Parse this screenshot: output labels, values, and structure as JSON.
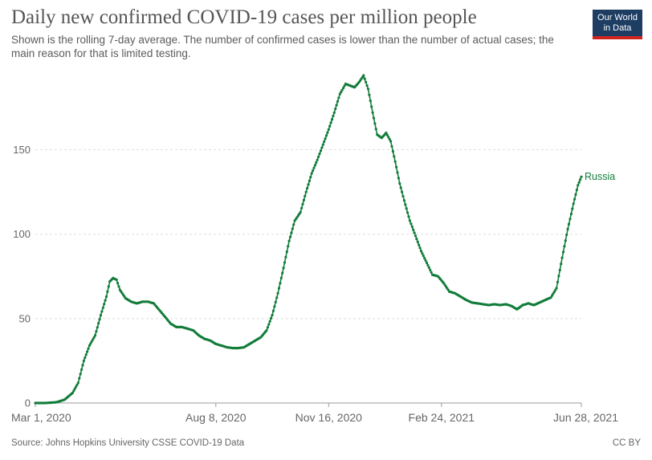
{
  "header": {
    "title": "Daily new confirmed COVID-19 cases per million people",
    "subtitle": "Shown is the rolling 7-day average. The number of confirmed cases is lower than the number of actual cases; the main reason for that is limited testing."
  },
  "logo": {
    "line1": "Our World",
    "line2": "in Data",
    "bg_color": "#1d3d63",
    "accent_color": "#ce261e"
  },
  "footer": {
    "source": "Source: Johns Hopkins University CSSE COVID-19 Data",
    "license": "CC BY"
  },
  "chart_data": {
    "type": "line",
    "title": "Daily new confirmed COVID-19 cases per million people",
    "xlabel": "",
    "ylabel": "",
    "x_ticks": [
      "Mar 1, 2020",
      "Aug 8, 2020",
      "Nov 16, 2020",
      "Feb 24, 2021",
      "Jun 28, 2021"
    ],
    "y_ticks": [
      "0",
      "50",
      "100",
      "150"
    ],
    "ylim": [
      0,
      195
    ],
    "xlim": [
      "2020-03-01",
      "2021-06-28"
    ],
    "grid": true,
    "legend": "inline-right",
    "series": [
      {
        "name": "Russia",
        "color": "#127c3a",
        "points": [
          [
            "2020-03-01",
            0
          ],
          [
            "2020-03-10",
            0
          ],
          [
            "2020-03-20",
            0.5
          ],
          [
            "2020-03-27",
            2
          ],
          [
            "2020-04-03",
            6
          ],
          [
            "2020-04-08",
            12
          ],
          [
            "2020-04-13",
            25
          ],
          [
            "2020-04-18",
            34
          ],
          [
            "2020-04-23",
            40
          ],
          [
            "2020-04-28",
            52
          ],
          [
            "2020-05-03",
            63
          ],
          [
            "2020-05-06",
            72
          ],
          [
            "2020-05-09",
            74
          ],
          [
            "2020-05-12",
            73
          ],
          [
            "2020-05-15",
            67
          ],
          [
            "2020-05-20",
            62
          ],
          [
            "2020-05-25",
            60
          ],
          [
            "2020-05-30",
            59
          ],
          [
            "2020-06-04",
            60
          ],
          [
            "2020-06-09",
            60
          ],
          [
            "2020-06-14",
            59
          ],
          [
            "2020-06-19",
            55
          ],
          [
            "2020-06-24",
            51
          ],
          [
            "2020-06-29",
            47
          ],
          [
            "2020-07-04",
            45
          ],
          [
            "2020-07-09",
            45
          ],
          [
            "2020-07-14",
            44
          ],
          [
            "2020-07-19",
            43
          ],
          [
            "2020-07-24",
            40
          ],
          [
            "2020-07-29",
            38
          ],
          [
            "2020-08-03",
            37
          ],
          [
            "2020-08-08",
            35
          ],
          [
            "2020-08-13",
            34
          ],
          [
            "2020-08-18",
            33
          ],
          [
            "2020-08-23",
            32.5
          ],
          [
            "2020-08-28",
            32.5
          ],
          [
            "2020-09-02",
            33
          ],
          [
            "2020-09-07",
            35
          ],
          [
            "2020-09-12",
            37
          ],
          [
            "2020-09-17",
            39
          ],
          [
            "2020-09-22",
            43
          ],
          [
            "2020-09-27",
            52
          ],
          [
            "2020-10-02",
            65
          ],
          [
            "2020-10-07",
            80
          ],
          [
            "2020-10-12",
            96
          ],
          [
            "2020-10-17",
            108
          ],
          [
            "2020-10-22",
            113
          ],
          [
            "2020-10-27",
            125
          ],
          [
            "2020-11-01",
            136
          ],
          [
            "2020-11-06",
            144
          ],
          [
            "2020-11-11",
            153
          ],
          [
            "2020-11-16",
            162
          ],
          [
            "2020-11-21",
            172
          ],
          [
            "2020-11-26",
            183
          ],
          [
            "2020-12-01",
            189
          ],
          [
            "2020-12-05",
            188
          ],
          [
            "2020-12-09",
            187
          ],
          [
            "2020-12-13",
            190
          ],
          [
            "2020-12-17",
            194
          ],
          [
            "2020-12-21",
            186
          ],
          [
            "2020-12-25",
            172
          ],
          [
            "2020-12-29",
            159
          ],
          [
            "2021-01-02",
            157
          ],
          [
            "2021-01-06",
            160
          ],
          [
            "2021-01-10",
            155
          ],
          [
            "2021-01-14",
            143
          ],
          [
            "2021-01-18",
            130
          ],
          [
            "2021-01-22",
            120
          ],
          [
            "2021-01-27",
            108
          ],
          [
            "2021-02-01",
            99
          ],
          [
            "2021-02-06",
            90
          ],
          [
            "2021-02-11",
            83
          ],
          [
            "2021-02-16",
            76
          ],
          [
            "2021-02-21",
            75
          ],
          [
            "2021-02-26",
            71
          ],
          [
            "2021-03-03",
            66
          ],
          [
            "2021-03-08",
            65
          ],
          [
            "2021-03-13",
            63
          ],
          [
            "2021-03-18",
            61
          ],
          [
            "2021-03-23",
            59.5
          ],
          [
            "2021-03-28",
            59
          ],
          [
            "2021-04-02",
            58.5
          ],
          [
            "2021-04-07",
            58
          ],
          [
            "2021-04-12",
            58.5
          ],
          [
            "2021-04-17",
            58
          ],
          [
            "2021-04-22",
            58.5
          ],
          [
            "2021-04-27",
            57.5
          ],
          [
            "2021-05-02",
            55.5
          ],
          [
            "2021-05-07",
            58
          ],
          [
            "2021-05-12",
            59
          ],
          [
            "2021-05-17",
            58
          ],
          [
            "2021-05-22",
            59.5
          ],
          [
            "2021-05-27",
            61
          ],
          [
            "2021-06-01",
            62.5
          ],
          [
            "2021-06-06",
            68
          ],
          [
            "2021-06-11",
            86
          ],
          [
            "2021-06-16",
            103
          ],
          [
            "2021-06-21",
            118
          ],
          [
            "2021-06-25",
            129
          ],
          [
            "2021-06-28",
            134
          ]
        ]
      }
    ]
  }
}
